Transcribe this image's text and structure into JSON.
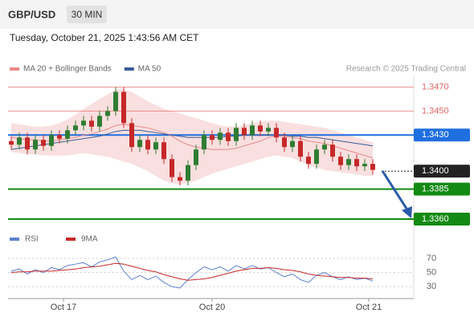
{
  "header": {
    "symbol": "GBP/USD",
    "timeframe": "30 MIN",
    "timestamp": "Tuesday, October 21, 2025 1:43:56 AM CET"
  },
  "chart_data": [
    {
      "type": "candlestick",
      "legend": [
        {
          "name": "MA 20 + Bollinger Bands",
          "color": "#e88a8a"
        },
        {
          "name": "MA 50",
          "color": "#3b5c9a"
        }
      ],
      "credit": "Research © 2025 Trading Central",
      "up_color": "#2e7d32",
      "down_color": "#c62828",
      "open": [
        1.3425,
        1.3422,
        1.3428,
        1.3418,
        1.3426,
        1.3421,
        1.343,
        1.3427,
        1.3434,
        1.3438,
        1.3442,
        1.3437,
        1.3446,
        1.345,
        1.3466,
        1.344,
        1.342,
        1.3426,
        1.3418,
        1.3424,
        1.341,
        1.3395,
        1.3392,
        1.3405,
        1.3418,
        1.343,
        1.3426,
        1.3432,
        1.3425,
        1.3436,
        1.343,
        1.3438,
        1.3433,
        1.3436,
        1.3428,
        1.342,
        1.3425,
        1.3412,
        1.3406,
        1.3418,
        1.3422,
        1.3412,
        1.3405,
        1.341,
        1.3404,
        1.3406
      ],
      "high": [
        1.3429,
        1.3432,
        1.3432,
        1.343,
        1.343,
        1.3434,
        1.3434,
        1.3438,
        1.3442,
        1.3446,
        1.3446,
        1.345,
        1.3454,
        1.347,
        1.347,
        1.3444,
        1.343,
        1.343,
        1.3428,
        1.3428,
        1.3414,
        1.3399,
        1.3409,
        1.3422,
        1.3434,
        1.3434,
        1.3436,
        1.3436,
        1.344,
        1.344,
        1.3442,
        1.3442,
        1.344,
        1.344,
        1.3432,
        1.3429,
        1.3429,
        1.3416,
        1.3422,
        1.3426,
        1.3426,
        1.3416,
        1.3414,
        1.3414,
        1.341,
        1.341
      ],
      "low": [
        1.3418,
        1.3418,
        1.3414,
        1.3414,
        1.3417,
        1.3417,
        1.3423,
        1.3423,
        1.343,
        1.3434,
        1.3433,
        1.3433,
        1.3442,
        1.3446,
        1.3436,
        1.3416,
        1.3416,
        1.3414,
        1.3414,
        1.3406,
        1.3391,
        1.3388,
        1.3388,
        1.3401,
        1.3414,
        1.3422,
        1.3422,
        1.3421,
        1.3421,
        1.3426,
        1.3426,
        1.3429,
        1.3429,
        1.3424,
        1.3416,
        1.3416,
        1.3408,
        1.3402,
        1.3402,
        1.3414,
        1.3408,
        1.3401,
        1.3401,
        1.34,
        1.34,
        1.3397
      ],
      "close": [
        1.3422,
        1.3428,
        1.3418,
        1.3426,
        1.3421,
        1.343,
        1.3427,
        1.3434,
        1.3438,
        1.3442,
        1.3437,
        1.3446,
        1.345,
        1.3466,
        1.344,
        1.342,
        1.3426,
        1.3418,
        1.3424,
        1.341,
        1.3395,
        1.3392,
        1.3405,
        1.3418,
        1.343,
        1.3426,
        1.3432,
        1.3425,
        1.3436,
        1.343,
        1.3438,
        1.3433,
        1.3436,
        1.3428,
        1.342,
        1.3425,
        1.3412,
        1.3406,
        1.3418,
        1.3422,
        1.3412,
        1.3405,
        1.341,
        1.3404,
        1.3406,
        1.3401
      ],
      "bands": {
        "color": "#f8d7d7",
        "upper": [
          1.344,
          1.3439,
          1.3438,
          1.3437,
          1.3437,
          1.3438,
          1.344,
          1.3443,
          1.3447,
          1.3452,
          1.3456,
          1.346,
          1.3464,
          1.3468,
          1.3468,
          1.3466,
          1.3462,
          1.3458,
          1.3455,
          1.3452,
          1.345,
          1.3448,
          1.3446,
          1.3444,
          1.3442,
          1.344,
          1.3438,
          1.3437,
          1.3437,
          1.3438,
          1.344,
          1.3441,
          1.3442,
          1.3442,
          1.3441,
          1.344,
          1.3439,
          1.3438,
          1.3437,
          1.3436,
          1.3434,
          1.3432,
          1.343,
          1.3428,
          1.3426,
          1.3424
        ],
        "lower": [
          1.3416,
          1.3415,
          1.3414,
          1.3414,
          1.3413,
          1.3413,
          1.3413,
          1.3413,
          1.3414,
          1.3415,
          1.3414,
          1.3413,
          1.3412,
          1.341,
          1.3408,
          1.3406,
          1.3403,
          1.34,
          1.3396,
          1.3392,
          1.339,
          1.3389,
          1.339,
          1.3392,
          1.3395,
          1.3398,
          1.34,
          1.3402,
          1.3404,
          1.3406,
          1.3408,
          1.341,
          1.3412,
          1.3413,
          1.3412,
          1.3411,
          1.3408,
          1.3405,
          1.3403,
          1.3401,
          1.34,
          1.3399,
          1.3398,
          1.3397,
          1.3396,
          1.3396
        ]
      },
      "series": [
        {
          "name": "MA 20",
          "color": "#e88a8a",
          "values": [
            1.3428,
            1.3427,
            1.3426,
            1.3426,
            1.3425,
            1.3425,
            1.3426,
            1.3427,
            1.3428,
            1.343,
            1.3431,
            1.3433,
            1.3435,
            1.3438,
            1.3439,
            1.3438,
            1.3437,
            1.3436,
            1.3434,
            1.3432,
            1.3429,
            1.3425,
            1.3422,
            1.342,
            1.3419,
            1.3418,
            1.3418,
            1.3418,
            1.3419,
            1.3421,
            1.3423,
            1.3425,
            1.3428,
            1.3429,
            1.3429,
            1.3428,
            1.3427,
            1.3425,
            1.3424,
            1.3423,
            1.3421,
            1.3419,
            1.3417,
            1.3415,
            1.3413,
            1.3411
          ]
        },
        {
          "name": "MA 50",
          "color": "#3b5c9a",
          "values": [
            1.3418,
            1.3419,
            1.342,
            1.3421,
            1.3422,
            1.3423,
            1.3424,
            1.3425,
            1.3426,
            1.3427,
            1.3428,
            1.3429,
            1.3431,
            1.3433,
            1.3434,
            1.3434,
            1.3434,
            1.3433,
            1.3432,
            1.3431,
            1.343,
            1.3429,
            1.3428,
            1.3428,
            1.3428,
            1.3428,
            1.3428,
            1.3429,
            1.3429,
            1.343,
            1.343,
            1.343,
            1.343,
            1.343,
            1.343,
            1.3429,
            1.3429,
            1.3428,
            1.3428,
            1.3427,
            1.3426,
            1.3425,
            1.3424,
            1.3423,
            1.3422,
            1.3421
          ]
        }
      ],
      "levels": [
        {
          "value": 1.347,
          "label": "1.3470",
          "color": "#e06666",
          "label_box": false
        },
        {
          "value": 1.345,
          "label": "1.3450",
          "color": "#e06666",
          "label_box": false
        },
        {
          "value": 1.343,
          "label": "1.3430",
          "color": "#1f6fe0",
          "label_box": true
        },
        {
          "value": 1.34,
          "label": "1.3400",
          "color": "#222222",
          "label_box": true
        },
        {
          "value": 1.3385,
          "label": "1.3385",
          "color": "#138a13",
          "label_box": true
        },
        {
          "value": 1.336,
          "label": "1.3360",
          "color": "#138a13",
          "label_box": true
        }
      ],
      "ylim": [
        1.3352,
        1.3479
      ],
      "xticks": [
        {
          "value": 6.5,
          "label": "Oct 17"
        },
        {
          "value": 25,
          "label": "Oct 20"
        },
        {
          "value": 44.5,
          "label": "Oct 21"
        }
      ]
    },
    {
      "type": "line",
      "series": [
        {
          "name": "RSI",
          "color": "#5b7fd0",
          "values": [
            52,
            55,
            48,
            54,
            50,
            57,
            54,
            60,
            62,
            64,
            58,
            65,
            68,
            72,
            52,
            40,
            46,
            40,
            45,
            36,
            30,
            28,
            40,
            50,
            58,
            54,
            58,
            52,
            60,
            55,
            60,
            55,
            57,
            50,
            44,
            48,
            40,
            36,
            46,
            50,
            44,
            40,
            44,
            40,
            42,
            38
          ]
        },
        {
          "name": "9MA",
          "color": "#c62828",
          "values": [
            50,
            51,
            51,
            52,
            52,
            52,
            53,
            54,
            55,
            57,
            58,
            59,
            61,
            63,
            62,
            59,
            56,
            53,
            51,
            47,
            44,
            41,
            39,
            40,
            41,
            43,
            46,
            49,
            52,
            54,
            56,
            56,
            57,
            56,
            54,
            53,
            51,
            48,
            46,
            45,
            44,
            43,
            43,
            42,
            42,
            41
          ]
        }
      ],
      "ylim": [
        20,
        78
      ],
      "yticks": [
        70,
        50,
        30
      ]
    }
  ]
}
